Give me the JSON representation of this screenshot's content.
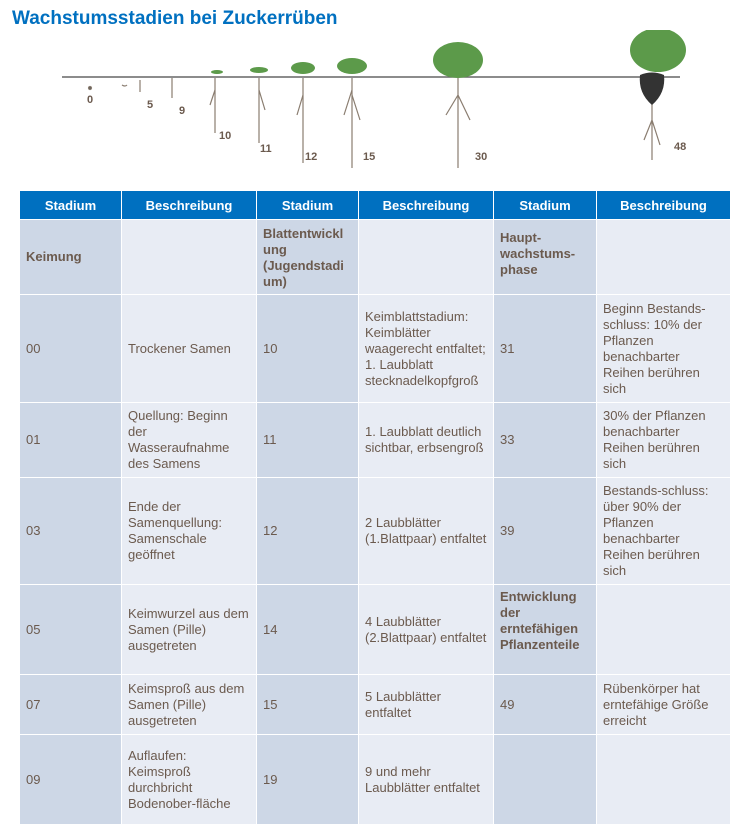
{
  "title": "Wachstumsstadien bei Zuckerrüben",
  "illustration_labels": [
    "0",
    "5",
    "9",
    "10",
    "11",
    "12",
    "15",
    "30",
    "48"
  ],
  "headers": [
    "Stadium",
    "Beschreibung",
    "Stadium",
    "Beschreibung",
    "Stadium",
    "Beschreibung"
  ],
  "rows": [
    [
      "Keimung",
      "",
      "Blattentwickl ung (Jugendstadi um)",
      "",
      "Haupt-wachstums-phase",
      ""
    ],
    [
      "00",
      "Trockener Samen",
      "10",
      "Keimblattstadium: Keimblätter waagerecht entfaltet; 1. Laubblatt stecknadelkopfgroß",
      "31",
      "Beginn Bestands-schluss: 10% der Pflanzen benachbarter Reihen berühren sich"
    ],
    [
      "01",
      "Quellung: Beginn der Wasseraufnahme des Samens",
      "11",
      "1. Laubblatt deutlich sichtbar, erbsengroß",
      "33",
      "30% der Pflanzen benachbarter Reihen berühren sich"
    ],
    [
      "03",
      "Ende der Samenquellung: Samenschale geöffnet",
      "12",
      "2 Laubblätter (1.Blattpaar) entfaltet",
      "39",
      "Bestands-schluss: über 90% der Pflanzen benachbarter Reihen berühren sich"
    ],
    [
      "05",
      "Keimwurzel aus dem Samen (Pille) ausgetreten",
      "14",
      "4 Laubblätter (2.Blattpaar) entfaltet",
      "Entwicklung der erntefähigen Pflanzenteile",
      ""
    ],
    [
      "07",
      "Keimsproß aus dem Samen (Pille) ausgetreten",
      "15",
      "5 Laubblätter entfaltet",
      "49",
      "Rübenkörper hat erntefähige Größe erreicht"
    ],
    [
      "09",
      "Auflaufen: Keimsproß durchbricht Bodenober-fläche",
      "19",
      "9 und mehr Laubblätter entfaltet",
      "",
      ""
    ]
  ],
  "colors": {
    "header": "#0070c0",
    "stadium_cell": "#cdd7e6",
    "desc_cell": "#e8ecf4",
    "text": "#6b5a4e"
  }
}
